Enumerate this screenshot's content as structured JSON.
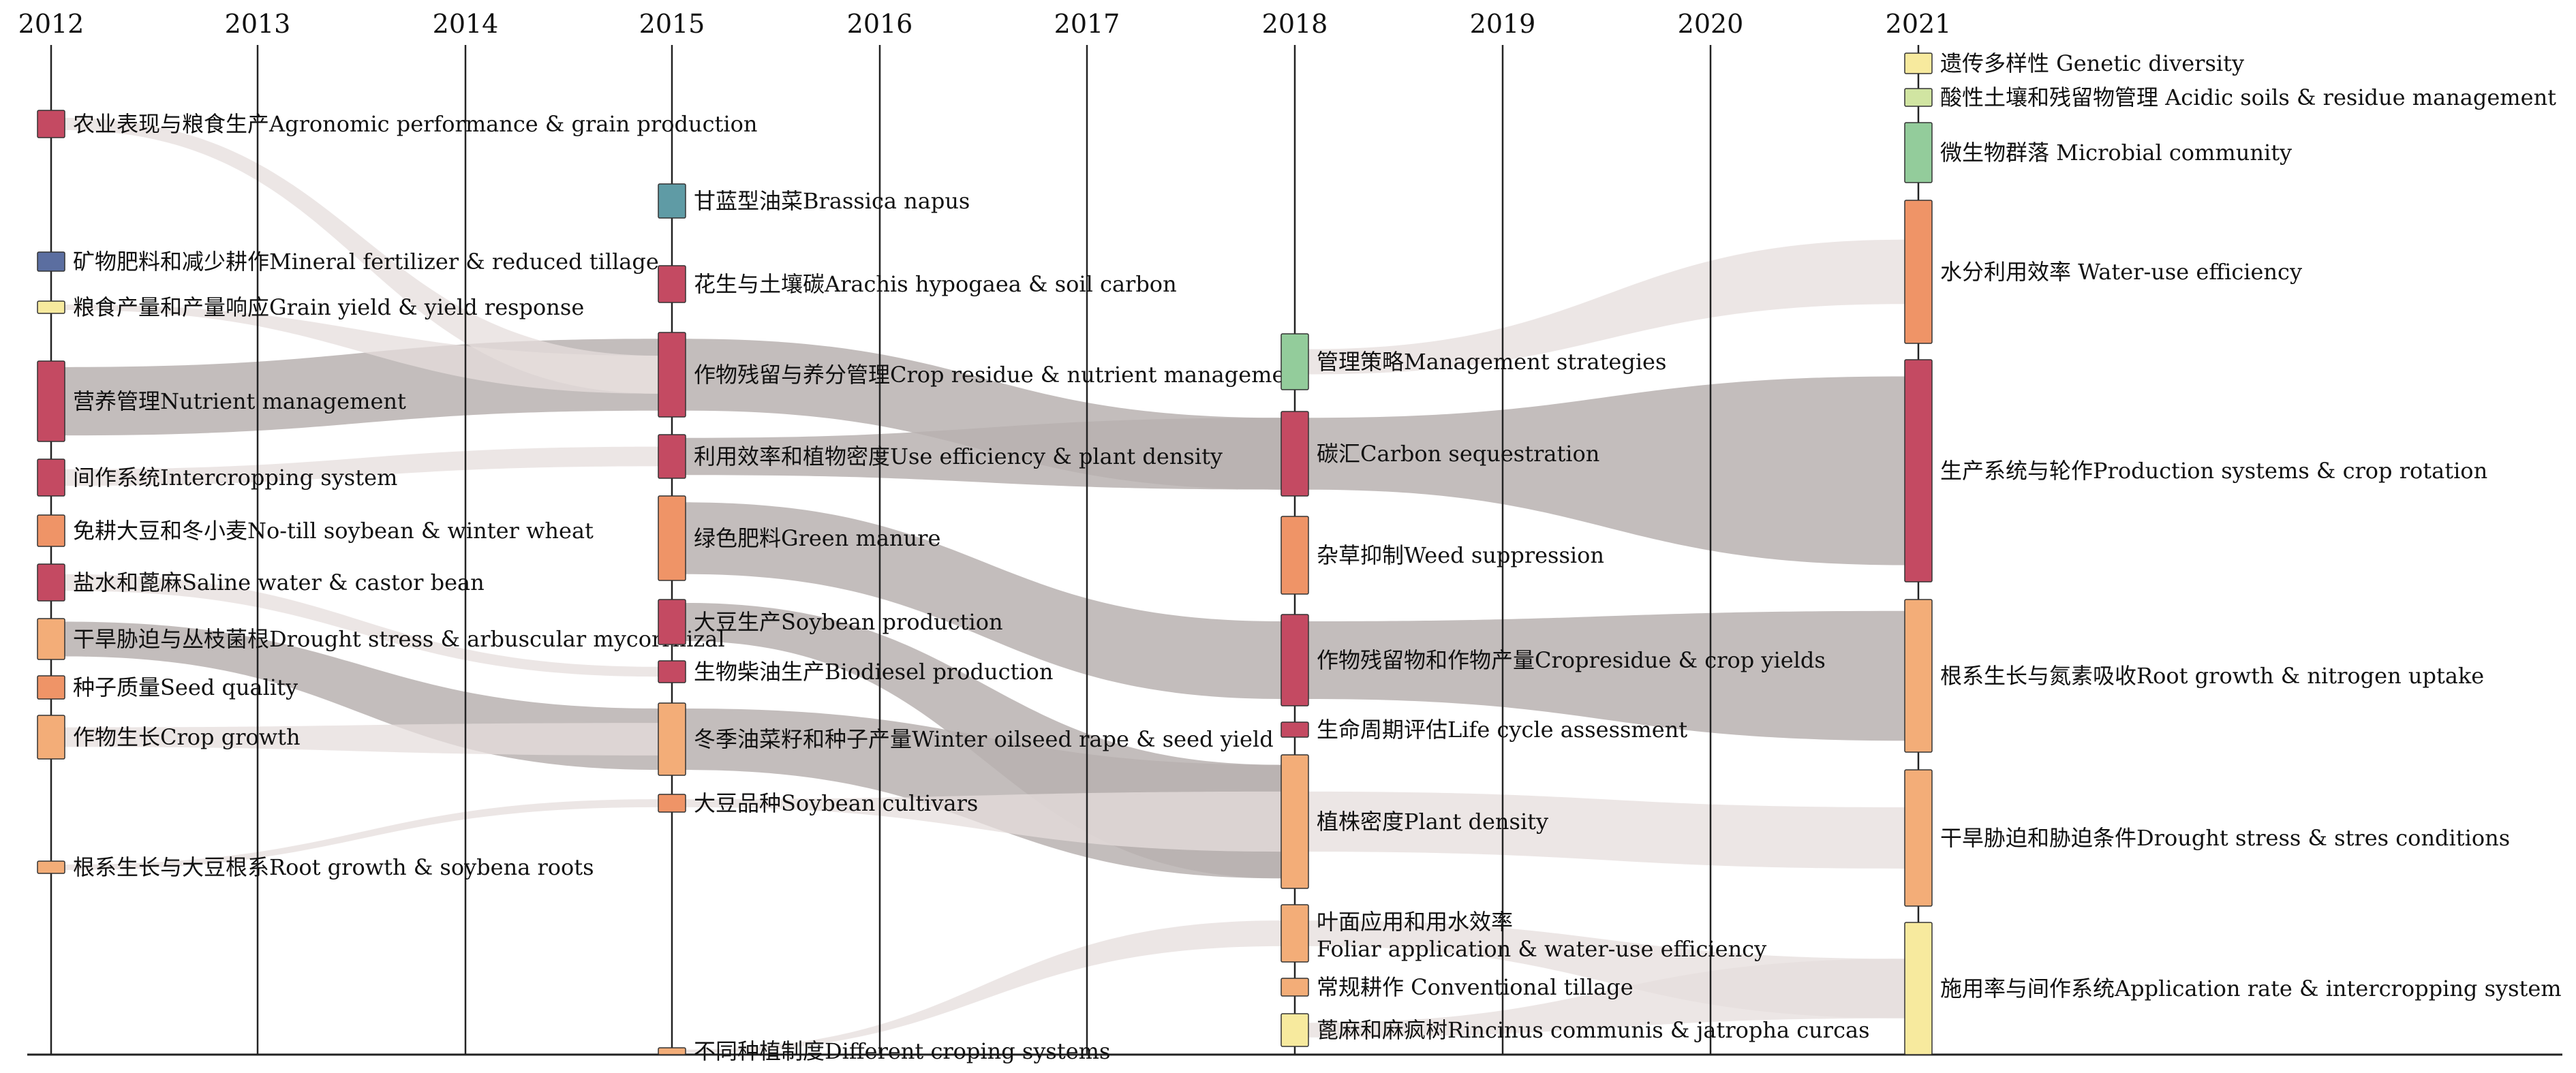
{
  "diagram": {
    "type": "alluvial-timeline",
    "years": [
      "2012",
      "2013",
      "2014",
      "2015",
      "2016",
      "2017",
      "2018",
      "2019",
      "2020",
      "2021"
    ],
    "colors": {
      "red": "#c44a62",
      "orange": "#ef9467",
      "peach": "#f3ad78",
      "yellow": "#f7ea9e",
      "green": "#93cc9b",
      "teal": "#5f9ba5",
      "blue": "#5b6ea0",
      "lightgreen": "#d1e5a2",
      "flow_dark": "#b9b1b0",
      "flow_light": "#e6dedc"
    },
    "nodes": [
      {
        "id": "n2012_agro",
        "year": "2012",
        "label": "农业表现与粮食生产Agronomic performance & grain production",
        "color": "red"
      },
      {
        "id": "n2012_mineral",
        "year": "2012",
        "label": "矿物肥料和减少耕作Mineral fertilizer & reduced tillage",
        "color": "blue"
      },
      {
        "id": "n2012_grain",
        "year": "2012",
        "label": "粮食产量和产量响应Grain yield & yield response",
        "color": "yellow"
      },
      {
        "id": "n2012_nutrient",
        "year": "2012",
        "label": "营养管理Nutrient management",
        "color": "red"
      },
      {
        "id": "n2012_intercrop",
        "year": "2012",
        "label": "间作系统Intercropping system",
        "color": "red"
      },
      {
        "id": "n2012_notill",
        "year": "2012",
        "label": "免耕大豆和冬小麦No-till soybean & winter wheat",
        "color": "orange"
      },
      {
        "id": "n2012_saline",
        "year": "2012",
        "label": "盐水和蓖麻Saline water & castor bean",
        "color": "red"
      },
      {
        "id": "n2012_drought",
        "year": "2012",
        "label": "干旱胁迫与丛枝菌根Drought stress & arbuscular mycorrhizal",
        "color": "peach"
      },
      {
        "id": "n2012_seed",
        "year": "2012",
        "label": "种子质量Seed quality",
        "color": "orange"
      },
      {
        "id": "n2012_cropgrowth",
        "year": "2012",
        "label": "作物生长Crop growth",
        "color": "peach"
      },
      {
        "id": "n2012_roots",
        "year": "2012",
        "label": "根系生长与大豆根系Root growth & soybena roots",
        "color": "peach"
      },
      {
        "id": "n2015_brassica",
        "year": "2015",
        "label": "甘蓝型油菜Brassica napus",
        "color": "teal"
      },
      {
        "id": "n2015_arachis",
        "year": "2015",
        "label": "花生与土壤碳Arachis hypogaea & soil carbon",
        "color": "red"
      },
      {
        "id": "n2015_residue",
        "year": "2015",
        "label": "作物残留与养分管理Crop residue & nutrient management",
        "color": "red"
      },
      {
        "id": "n2015_efficiency",
        "year": "2015",
        "label": "利用效率和植物密度Use efficiency & plant density",
        "color": "red"
      },
      {
        "id": "n2015_green",
        "year": "2015",
        "label": "绿色肥料Green manure",
        "color": "orange"
      },
      {
        "id": "n2015_soyprod",
        "year": "2015",
        "label": "大豆生产Soybean production",
        "color": "red"
      },
      {
        "id": "n2015_biodiesel",
        "year": "2015",
        "label": "生物柴油生产Biodiesel production",
        "color": "red"
      },
      {
        "id": "n2015_oilseed",
        "year": "2015",
        "label": "冬季油菜籽和种子产量Winter oilseed rape & seed yield",
        "color": "peach"
      },
      {
        "id": "n2015_cultivars",
        "year": "2015",
        "label": "大豆品种Soybean cultivars",
        "color": "orange"
      },
      {
        "id": "n2015_cropping",
        "year": "2015",
        "label": "不同种植制度Different croping systems",
        "color": "peach"
      },
      {
        "id": "n2018_mgmt",
        "year": "2018",
        "label": "管理策略Management strategies",
        "color": "green"
      },
      {
        "id": "n2018_carbon",
        "year": "2018",
        "label": "碳汇Carbon sequestration",
        "color": "red"
      },
      {
        "id": "n2018_weed",
        "year": "2018",
        "label": "杂草抑制Weed suppression",
        "color": "orange"
      },
      {
        "id": "n2018_cropres",
        "year": "2018",
        "label": "作物残留物和作物产量Cropresidue & crop yields",
        "color": "red"
      },
      {
        "id": "n2018_lca",
        "year": "2018",
        "label": "生命周期评估Life cycle assessment",
        "color": "red"
      },
      {
        "id": "n2018_density",
        "year": "2018",
        "label": "植株密度Plant density",
        "color": "peach"
      },
      {
        "id": "n2018_foliar",
        "year": "2018",
        "label": "叶面应用和用水效率",
        "label2": "Foliar application & water-use efficiency",
        "color": "peach"
      },
      {
        "id": "n2018_conv",
        "year": "2018",
        "label": "常规耕作 Conventional tillage",
        "color": "peach"
      },
      {
        "id": "n2018_ricinus",
        "year": "2018",
        "label": "蓖麻和麻疯树Rincinus communis & jatropha curcas",
        "color": "yellow"
      },
      {
        "id": "n2021_genetic",
        "year": "2021",
        "label": "遗传多样性 Genetic diversity",
        "color": "yellow"
      },
      {
        "id": "n2021_acidic",
        "year": "2021",
        "label": "酸性土壤和残留物管理  Acidic soils & residue management",
        "color": "lightgreen"
      },
      {
        "id": "n2021_microbial",
        "year": "2021",
        "label": "微生物群落 Microbial community",
        "color": "green"
      },
      {
        "id": "n2021_water",
        "year": "2021",
        "label": "水分利用效率 Water-use efficiency",
        "color": "orange"
      },
      {
        "id": "n2021_production",
        "year": "2021",
        "label": "生产系统与轮作Production systems & crop rotation",
        "color": "red"
      },
      {
        "id": "n2021_rootn",
        "year": "2021",
        "label": "根系生长与氮素吸收Root growth & nitrogen uptake",
        "color": "peach"
      },
      {
        "id": "n2021_drought",
        "year": "2021",
        "label": "干旱胁迫和胁迫条件Drought stress & stres conditions",
        "color": "peach"
      },
      {
        "id": "n2021_apprate",
        "year": "2021",
        "label": "施用率与间作系统Application rate & intercropping system",
        "color": "yellow"
      }
    ],
    "flows": [
      {
        "from": "n2012_nutrient",
        "to": "n2015_residue",
        "weight": "major"
      },
      {
        "from": "n2012_drought",
        "to": "n2015_oilseed",
        "weight": "major"
      },
      {
        "from": "n2012_cropgrowth",
        "to": "n2015_oilseed",
        "weight": "minor"
      },
      {
        "from": "n2012_agro",
        "to": "n2015_residue",
        "weight": "minor"
      },
      {
        "from": "n2012_grain",
        "to": "n2015_residue",
        "weight": "minor"
      },
      {
        "from": "n2012_intercrop",
        "to": "n2015_efficiency",
        "weight": "minor"
      },
      {
        "from": "n2012_saline",
        "to": "n2015_biodiesel",
        "weight": "minor"
      },
      {
        "from": "n2012_roots",
        "to": "n2015_cultivars",
        "weight": "minor"
      },
      {
        "from": "n2015_residue",
        "to": "n2018_carbon",
        "weight": "major"
      },
      {
        "from": "n2015_efficiency",
        "to": "n2018_carbon",
        "weight": "major"
      },
      {
        "from": "n2015_green",
        "to": "n2018_cropres",
        "weight": "major"
      },
      {
        "from": "n2015_oilseed",
        "to": "n2018_density",
        "weight": "major"
      },
      {
        "from": "n2015_soyprod",
        "to": "n2018_density",
        "weight": "major"
      },
      {
        "from": "n2015_cultivars",
        "to": "n2018_density",
        "weight": "minor"
      },
      {
        "from": "n2015_cropping",
        "to": "n2018_foliar",
        "weight": "minor"
      },
      {
        "from": "n2018_carbon",
        "to": "n2021_production",
        "weight": "major"
      },
      {
        "from": "n2018_cropres",
        "to": "n2021_rootn",
        "weight": "major"
      },
      {
        "from": "n2018_density",
        "to": "n2021_drought",
        "weight": "minor"
      },
      {
        "from": "n2018_mgmt",
        "to": "n2021_water",
        "weight": "minor"
      },
      {
        "from": "n2018_foliar",
        "to": "n2021_apprate",
        "weight": "minor"
      },
      {
        "from": "n2018_ricinus",
        "to": "n2021_apprate",
        "weight": "minor"
      }
    ]
  }
}
